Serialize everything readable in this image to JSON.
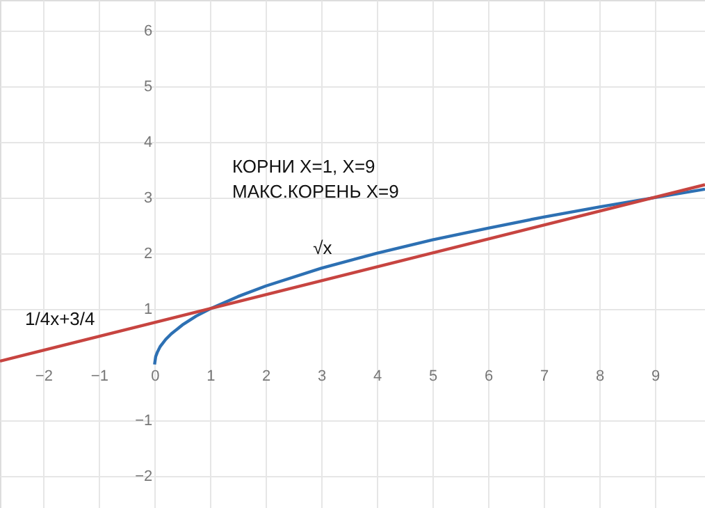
{
  "chart_data": {
    "type": "line",
    "xlim": [
      -2.78,
      9.9
    ],
    "ylim": [
      -2.58,
      6.55
    ],
    "xticks": [
      -2,
      -1,
      0,
      1,
      2,
      3,
      4,
      5,
      6,
      7,
      8,
      9
    ],
    "yticks": [
      -2,
      -1,
      1,
      2,
      3,
      4,
      5,
      6
    ],
    "grid": true,
    "marker": "none",
    "line_style": "solid",
    "annotations": [
      "КОРНИ   X=1,  X=9",
      "МАКС.КОРЕНЬ X=9"
    ],
    "series": [
      {
        "name": "√x",
        "color": "#2d70b3",
        "x": [
          0,
          0.02,
          0.05,
          0.1,
          0.2,
          0.3,
          0.5,
          0.75,
          1,
          1.5,
          2,
          3,
          4,
          5,
          6,
          7,
          8,
          9,
          9.9
        ],
        "values": [
          0,
          0.14,
          0.22,
          0.32,
          0.45,
          0.55,
          0.71,
          0.87,
          1,
          1.22,
          1.41,
          1.73,
          2,
          2.24,
          2.45,
          2.65,
          2.83,
          3,
          3.15
        ]
      },
      {
        "name": "1/4x+3/4",
        "color": "#c74440",
        "x": [
          -2.78,
          9.9
        ],
        "values": [
          0.06,
          3.23
        ]
      }
    ]
  }
}
